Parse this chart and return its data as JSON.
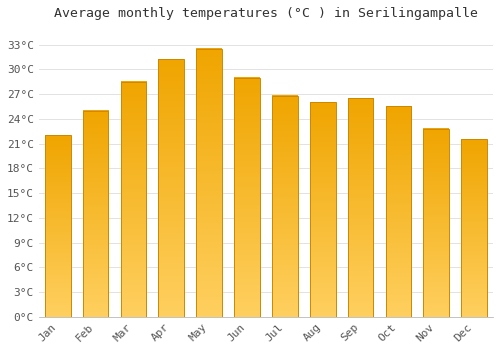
{
  "title": "Average monthly temperatures (°C ) in Serilingampalle",
  "months": [
    "Jan",
    "Feb",
    "Mar",
    "Apr",
    "May",
    "Jun",
    "Jul",
    "Aug",
    "Sep",
    "Oct",
    "Nov",
    "Dec"
  ],
  "values": [
    22.0,
    25.0,
    28.5,
    31.2,
    32.5,
    29.0,
    26.8,
    26.0,
    26.5,
    25.5,
    22.8,
    21.5
  ],
  "bar_color_top": "#F0A500",
  "bar_color_bottom": "#FFD060",
  "bar_edge_color": "#CC8800",
  "background_color": "#FFFFFF",
  "grid_color": "#DDDDDD",
  "ytick_labels": [
    "0°C",
    "3°C",
    "6°C",
    "9°C",
    "12°C",
    "15°C",
    "18°C",
    "21°C",
    "24°C",
    "27°C",
    "30°C",
    "33°C"
  ],
  "ytick_values": [
    0,
    3,
    6,
    9,
    12,
    15,
    18,
    21,
    24,
    27,
    30,
    33
  ],
  "ylim": [
    0,
    35
  ],
  "title_fontsize": 9.5,
  "tick_fontsize": 8,
  "bar_width": 0.68
}
